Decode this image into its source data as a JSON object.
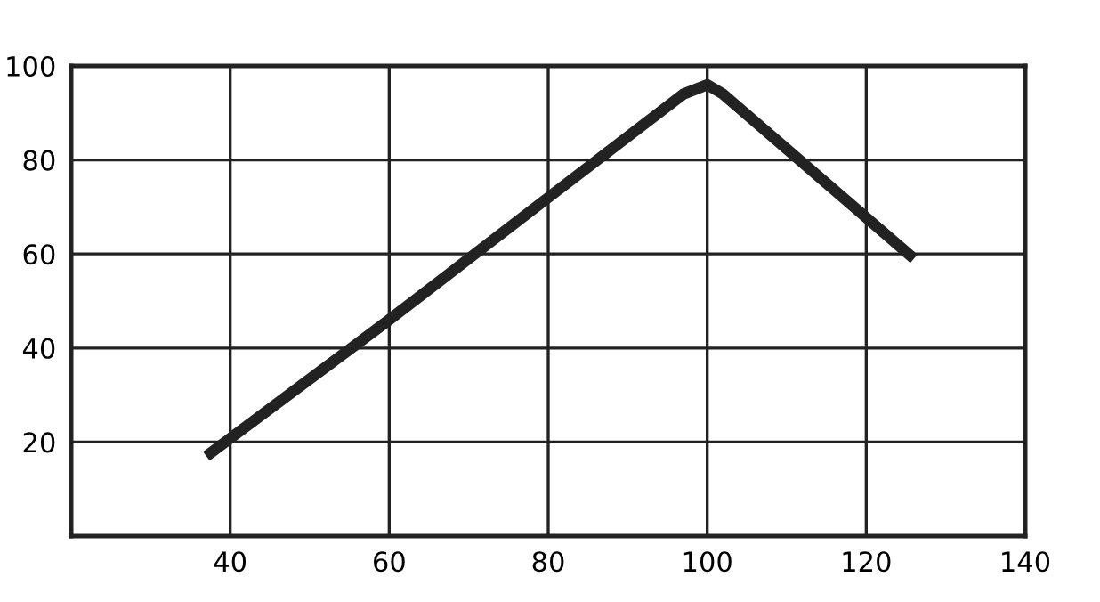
{
  "chart_data": {
    "type": "line",
    "x": [
      37,
      60,
      80,
      97,
      100,
      102,
      126
    ],
    "values": [
      17,
      46,
      72,
      94,
      96,
      94,
      59
    ],
    "color": "#222222",
    "xlim": [
      20,
      140
    ],
    "ylim": [
      0,
      100
    ],
    "xticks": [
      40,
      60,
      80,
      100,
      120,
      140
    ],
    "yticks": [
      20,
      40,
      60,
      80,
      100
    ],
    "grid": true,
    "marker": "none",
    "line_style": "solid"
  }
}
